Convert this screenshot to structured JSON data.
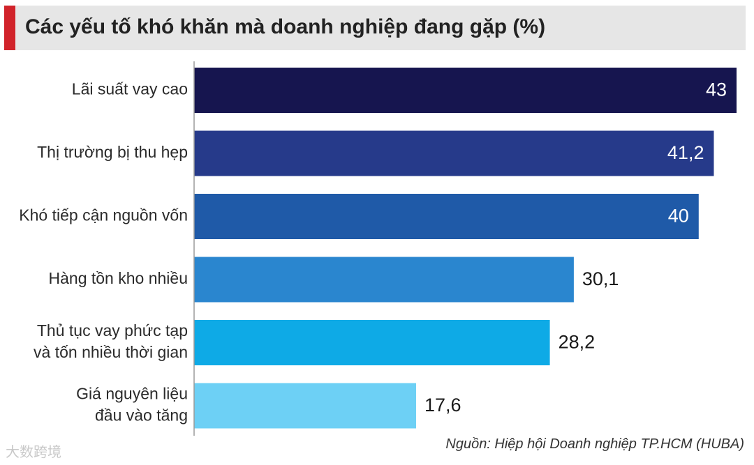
{
  "title": "Các yếu tố khó khăn mà doanh nghiệp đang gặp (%)",
  "source": "Nguồn: Hiệp hội Doanh nghiệp TP.HCM (HUBA)",
  "watermark": "大数跨境",
  "colors": {
    "title_accent": "#d1232a",
    "title_bg": "#e6e6e6",
    "bars": [
      "#16154f",
      "#263a8a",
      "#1f5aa8",
      "#2a86cf",
      "#0eaae6",
      "#6dd0f5"
    ]
  },
  "chart_data": {
    "type": "bar",
    "orientation": "horizontal",
    "title": "Các yếu tố khó khăn mà doanh nghiệp đang gặp (%)",
    "categories": [
      [
        "Lãi suất vay cao"
      ],
      [
        "Thị trường bị thu hẹp"
      ],
      [
        "Khó tiếp cận nguồn vốn"
      ],
      [
        "Hàng tồn kho nhiều"
      ],
      [
        "Thủ tục vay phức tạp",
        "và tốn nhiều thời gian"
      ],
      [
        "Giá nguyên liệu",
        "đầu vào tăng"
      ]
    ],
    "values": [
      43,
      41.2,
      40,
      30.1,
      28.2,
      17.6
    ],
    "value_labels": [
      "43",
      "41,2",
      "40",
      "30,1",
      "28,2",
      "17,6"
    ],
    "xlim": [
      0,
      43
    ],
    "grid": false,
    "legend": "none"
  }
}
